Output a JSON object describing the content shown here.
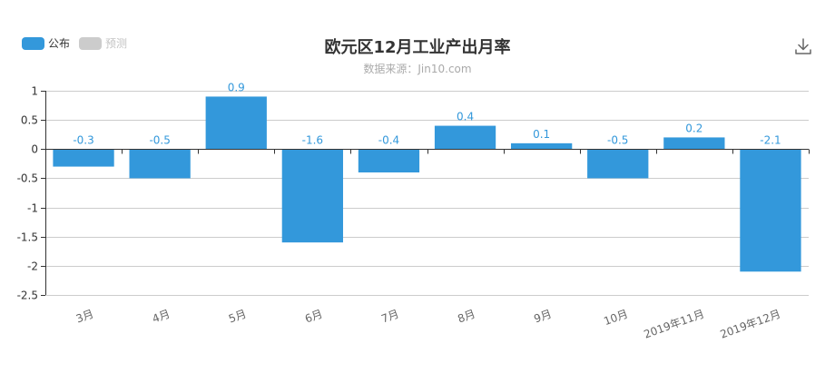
{
  "legend": {
    "items": [
      {
        "label": "公布",
        "color": "#3398DB",
        "active": true
      },
      {
        "label": "预测",
        "color": "#cccccc",
        "active": false
      }
    ]
  },
  "toolbar": {
    "download_icon": "download-icon"
  },
  "chart_data": {
    "type": "bar",
    "title": "欧元区12月工业产出月率",
    "subtitle": "数据来源：Jin10.com",
    "categories": [
      "3月",
      "4月",
      "5月",
      "6月",
      "7月",
      "8月",
      "9月",
      "10月",
      "2019年11月",
      "2019年12月"
    ],
    "series": [
      {
        "name": "公布",
        "color": "#3398DB",
        "values": [
          -0.3,
          -0.5,
          0.9,
          -1.6,
          -0.4,
          0.4,
          0.1,
          -0.5,
          0.2,
          -2.1
        ],
        "value_labels": [
          "-0.3",
          "-0.5",
          "0.9",
          "-1.6",
          "-0.4",
          "0.4",
          "0.1",
          "-0.5",
          "0.2",
          "-2.1"
        ]
      }
    ],
    "ylim": [
      -2.5,
      1
    ],
    "yticks": [
      1,
      0.5,
      0,
      -0.5,
      -1,
      -1.5,
      -2,
      -2.5
    ],
    "ytick_labels": [
      "1",
      "0.5",
      "0",
      "-0.5",
      "-1",
      "-1.5",
      "-2",
      "-2.5"
    ],
    "grid": true,
    "legend_position": "top-left",
    "xlabel": "",
    "ylabel": ""
  }
}
